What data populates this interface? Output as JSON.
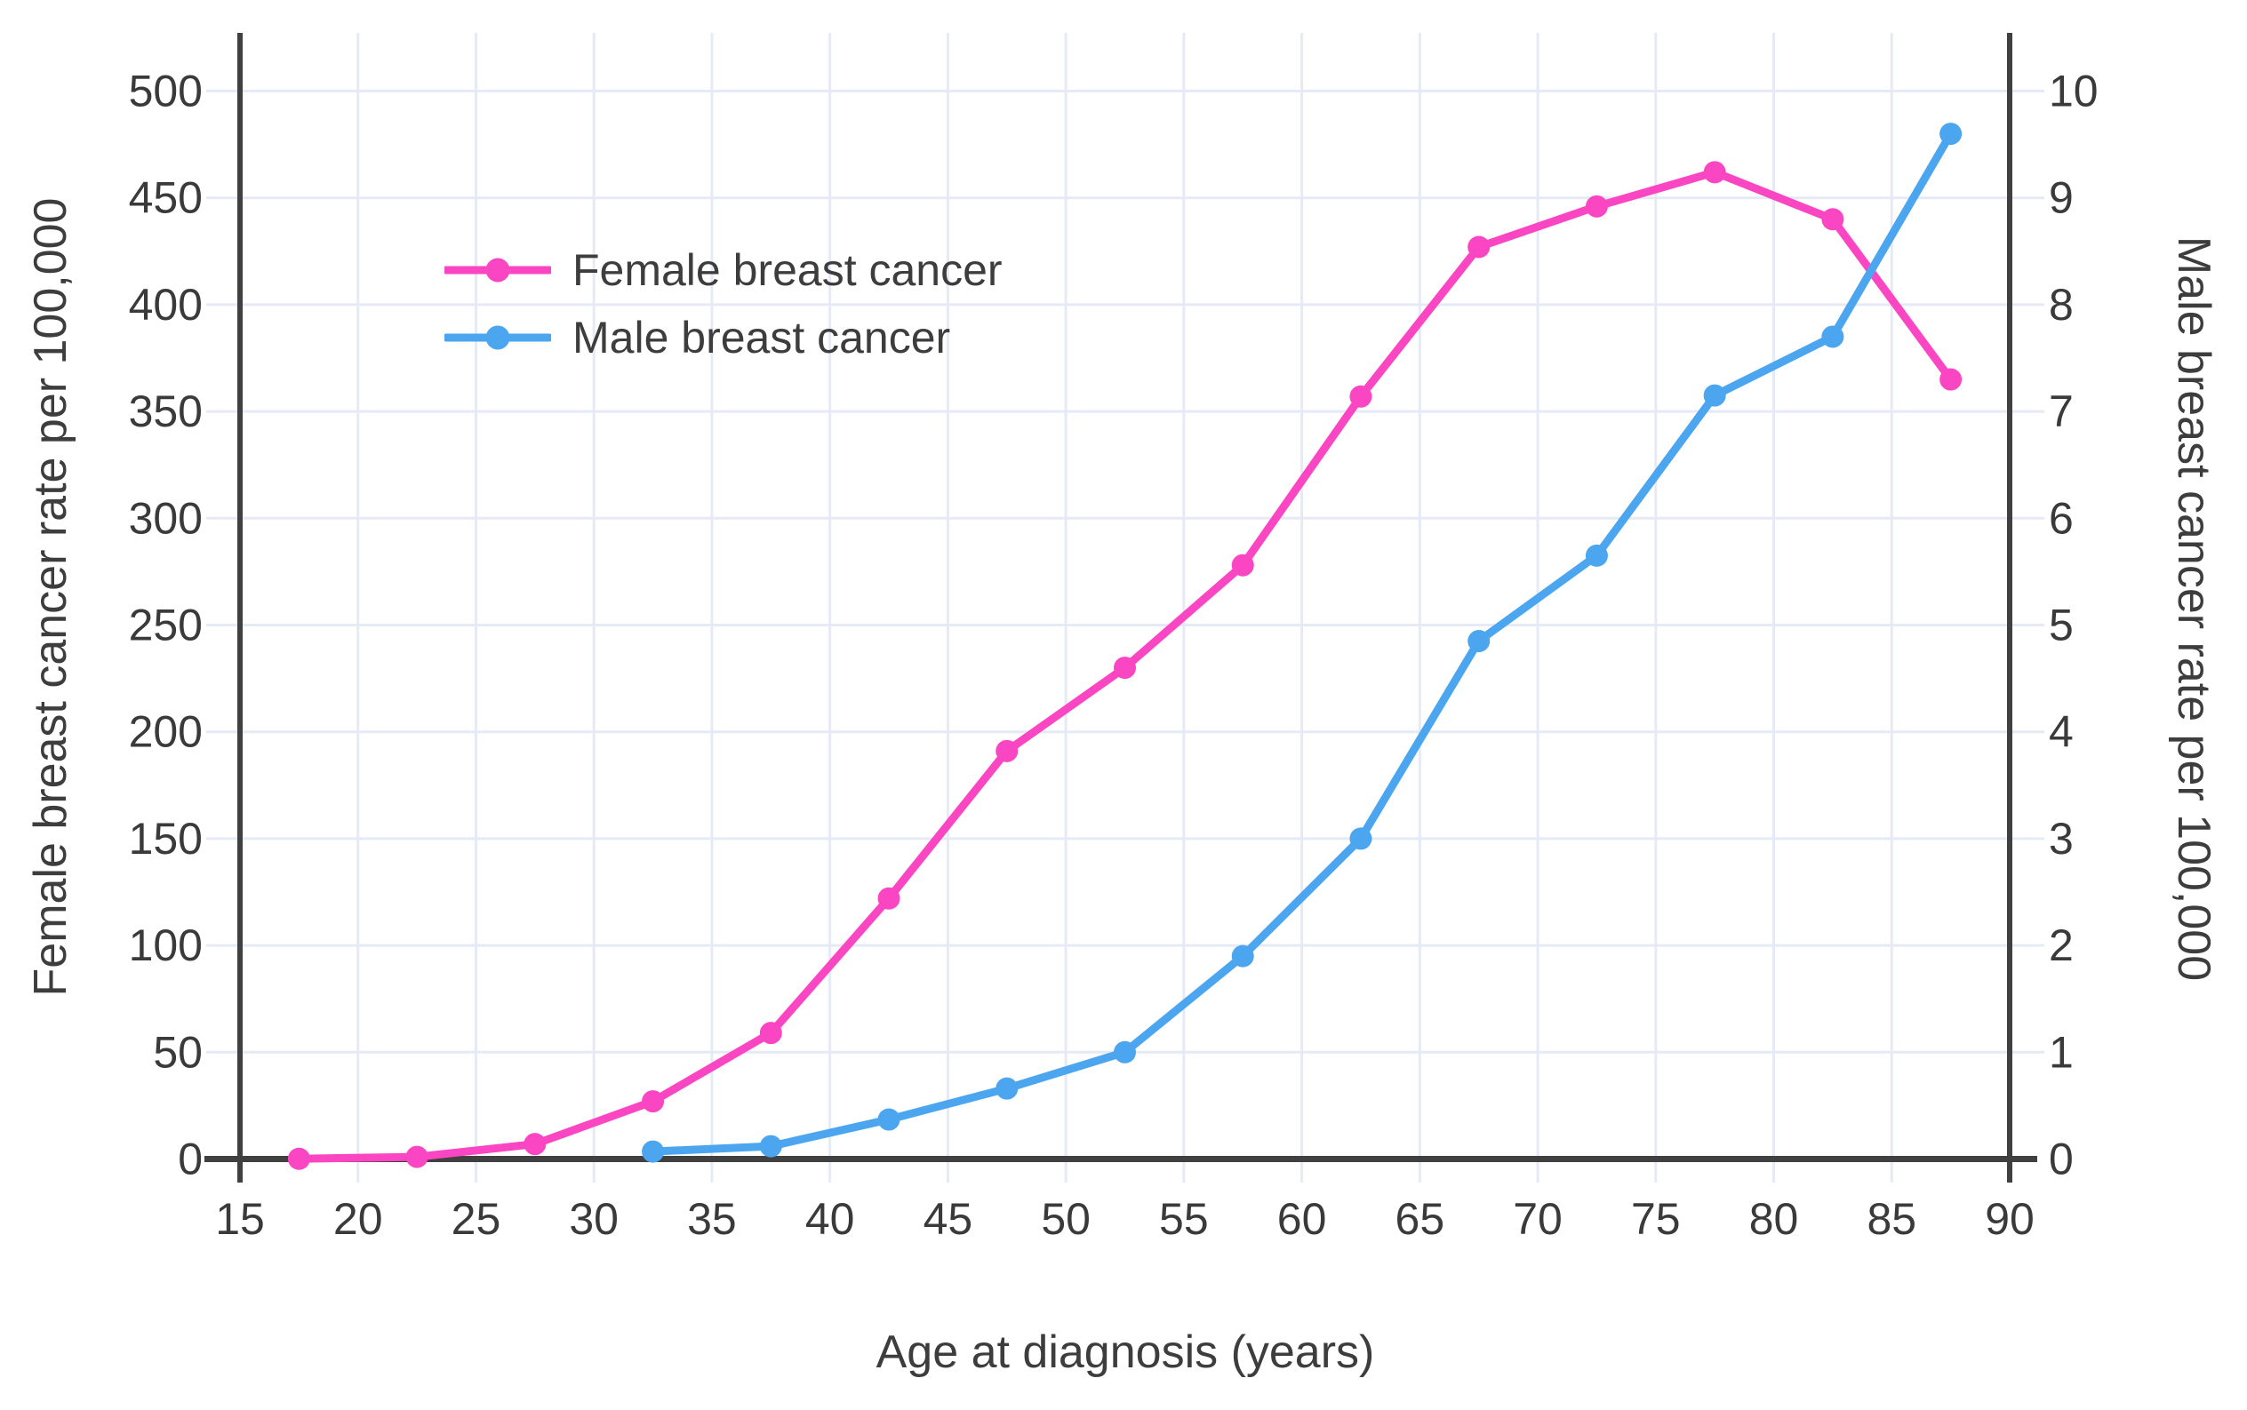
{
  "chart_data": {
    "type": "line",
    "title": "",
    "xlabel": "Age at diagnosis (years)",
    "x_axis": {
      "lim": [
        15,
        90
      ],
      "ticks": [
        15,
        20,
        25,
        30,
        35,
        40,
        45,
        50,
        55,
        60,
        65,
        70,
        75,
        80,
        85,
        90
      ]
    },
    "left_axis": {
      "label": "Female breast cancer rate per 100,000",
      "lim": [
        0,
        500
      ],
      "ticks": [
        0,
        50,
        100,
        150,
        200,
        250,
        300,
        350,
        400,
        450,
        500
      ]
    },
    "right_axis": {
      "label": "Male breast cancer rate per 100,000",
      "lim": [
        0,
        10
      ],
      "ticks": [
        0,
        1,
        2,
        3,
        4,
        5,
        6,
        7,
        8,
        9,
        10
      ]
    },
    "grid": true,
    "legend_position": "upper-left-inside",
    "series": [
      {
        "name": "Female breast cancer",
        "axis": "left",
        "color": "#fa46c3",
        "x": [
          17.5,
          22.5,
          27.5,
          32.5,
          37.5,
          42.5,
          47.5,
          52.5,
          57.5,
          62.5,
          67.5,
          72.5,
          77.5,
          82.5,
          87.5
        ],
        "y": [
          0.1,
          1,
          7,
          27,
          59,
          122,
          191,
          230,
          278,
          357,
          427,
          446,
          462,
          440,
          365
        ]
      },
      {
        "name": "Male breast cancer",
        "axis": "right",
        "color": "#4ba5ef",
        "x": [
          32.5,
          37.5,
          42.5,
          47.5,
          52.5,
          57.5,
          62.5,
          67.5,
          72.5,
          77.5,
          82.5,
          87.5
        ],
        "y": [
          0.07,
          0.12,
          0.37,
          0.66,
          1.0,
          1.9,
          3.0,
          4.85,
          5.65,
          7.15,
          7.7,
          9.6
        ]
      }
    ],
    "colors": {
      "axis_line": "#404040",
      "gridline": "#e6eaf6",
      "text": "#3a3a3a"
    }
  }
}
